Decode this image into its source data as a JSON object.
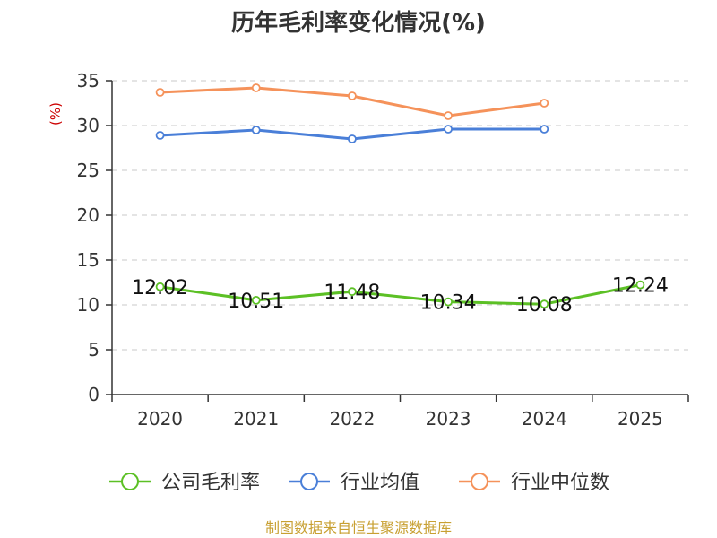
{
  "chart_data": {
    "type": "line",
    "title": "历年毛利率变化情况(%)",
    "ylabel": "(%)",
    "xlabel": "",
    "ylim": [
      0,
      35
    ],
    "yticks": [
      0,
      5,
      10,
      15,
      20,
      25,
      30,
      35
    ],
    "categories": [
      "2020",
      "2021",
      "2022",
      "2023",
      "2024",
      "2025"
    ],
    "grid": true,
    "legend_position": "bottom",
    "series": [
      {
        "name": "公司毛利率",
        "color": "#5cc025",
        "values": [
          12.02,
          10.51,
          11.48,
          10.34,
          10.08,
          12.24
        ],
        "labels": [
          "12.02",
          "10.51",
          "11.48",
          "10.34",
          "10.08",
          "12.24"
        ]
      },
      {
        "name": "行业均值",
        "color": "#4a7fd8",
        "values": [
          28.9,
          29.5,
          28.5,
          29.6,
          29.6,
          null
        ]
      },
      {
        "name": "行业中位数",
        "color": "#f5925a",
        "values": [
          33.7,
          34.2,
          33.3,
          31.1,
          32.5,
          null
        ]
      }
    ],
    "source": "制图数据来自恒生聚源数据库"
  }
}
